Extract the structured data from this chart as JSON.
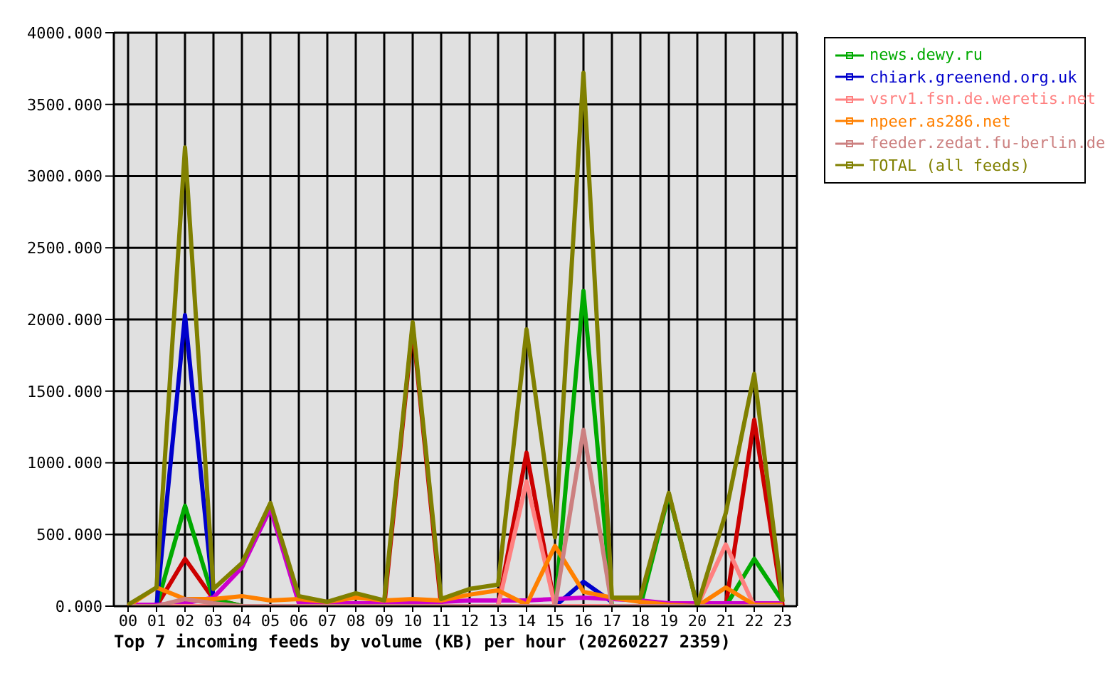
{
  "chart_data": {
    "type": "line",
    "title": "Top 7 incoming feeds by volume (KB) per hour (20260227 2359)",
    "categories": [
      "00",
      "01",
      "02",
      "03",
      "04",
      "05",
      "06",
      "07",
      "08",
      "09",
      "10",
      "11",
      "12",
      "13",
      "14",
      "15",
      "16",
      "17",
      "18",
      "19",
      "20",
      "21",
      "22",
      "23"
    ],
    "series": [
      {
        "color": "#cc0000",
        "values": [
          0,
          0,
          330,
          50,
          0,
          0,
          0,
          0,
          0,
          0,
          1950,
          0,
          0,
          0,
          1070,
          0,
          0,
          0,
          0,
          0,
          0,
          0,
          1300,
          0
        ]
      },
      {
        "name": "news.dewy.ru",
        "color": "#00aa00",
        "values": [
          0,
          0,
          700,
          50,
          0,
          0,
          0,
          0,
          0,
          0,
          0,
          0,
          0,
          0,
          0,
          0,
          2200,
          0,
          0,
          780,
          0,
          0,
          330,
          30
        ]
      },
      {
        "name": "chiark.greenend.org.uk",
        "color": "#0000cc",
        "values": [
          null,
          0,
          2030,
          50,
          null,
          null,
          null,
          null,
          null,
          null,
          null,
          null,
          null,
          null,
          null,
          0,
          170,
          30,
          null,
          null,
          null,
          null,
          null,
          null
        ]
      },
      {
        "color": "#cc00cc",
        "values": [
          10,
          10,
          20,
          60,
          270,
          680,
          20,
          20,
          20,
          20,
          30,
          30,
          40,
          40,
          40,
          50,
          60,
          50,
          40,
          20,
          20,
          20,
          20,
          20
        ]
      },
      {
        "name": "vsrv1.fsn.de.weretis.net",
        "color": "#ff8080",
        "values": [
          0,
          0,
          0,
          0,
          0,
          0,
          0,
          0,
          0,
          0,
          0,
          0,
          0,
          0,
          870,
          0,
          0,
          0,
          0,
          0,
          0,
          430,
          0,
          0
        ]
      },
      {
        "name": "npeer.as286.net",
        "color": "#ff8000",
        "values": [
          0,
          130,
          50,
          50,
          70,
          40,
          50,
          30,
          60,
          40,
          50,
          40,
          80,
          110,
          10,
          420,
          100,
          60,
          30,
          10,
          0,
          130,
          10,
          10
        ]
      },
      {
        "name": "feeder.zedat.fu-berlin.de",
        "color": "#cc8080",
        "values": [
          0,
          0,
          50,
          20,
          0,
          0,
          0,
          0,
          0,
          0,
          0,
          0,
          0,
          0,
          0,
          0,
          1230,
          0,
          0,
          0,
          0,
          0,
          0,
          0
        ]
      },
      {
        "name": "TOTAL (all feeds)",
        "color": "#808000",
        "values": [
          10,
          130,
          3200,
          120,
          300,
          720,
          70,
          30,
          90,
          40,
          1980,
          50,
          120,
          150,
          1930,
          480,
          3720,
          60,
          60,
          790,
          0,
          650,
          1620,
          30
        ]
      }
    ],
    "ylim": [
      0,
      4000
    ],
    "yticks": [
      {
        "value": 0,
        "label": "0.000"
      },
      {
        "value": 500,
        "label": "500.000"
      },
      {
        "value": 1000,
        "label": "1000.000"
      },
      {
        "value": 1500,
        "label": "1500.000"
      },
      {
        "value": 2000,
        "label": "2000.000"
      },
      {
        "value": 2500,
        "label": "2500.000"
      },
      {
        "value": 3000,
        "label": "3000.000"
      },
      {
        "value": 3500,
        "label": "3500.000"
      },
      {
        "value": 4000,
        "label": "4000.000"
      }
    ],
    "grid": true,
    "legend": "top right",
    "marker": "none",
    "line_style": "solid"
  }
}
